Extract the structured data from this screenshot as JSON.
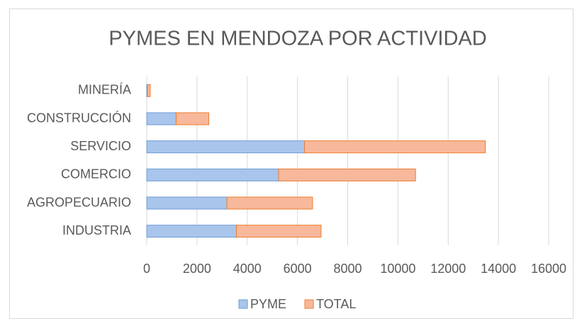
{
  "chart_data": {
    "type": "bar",
    "orientation": "horizontal",
    "stacked": true,
    "title": "PYMES EN MENDOZA POR ACTIVIDAD",
    "categories": [
      "INDUSTRIA",
      "AGROPECUARIO",
      "COMERCIO",
      "SERVICIO",
      "CONSTRUCCIÓN",
      "MINERÍA"
    ],
    "series": [
      {
        "name": "PYME",
        "color": "#a9c5ec",
        "edge": "#6d9bd4",
        "values": [
          3570,
          3190,
          5250,
          6280,
          1170,
          30
        ]
      },
      {
        "name": "TOTAL",
        "color": "#f7b89b",
        "edge": "#ed7d31",
        "values": [
          3370,
          3410,
          5450,
          7200,
          1300,
          110
        ]
      }
    ],
    "xlim": [
      0,
      16000
    ],
    "xticks": [
      0,
      2000,
      4000,
      6000,
      8000,
      10000,
      12000,
      14000,
      16000
    ],
    "grid": true,
    "legend": "bottom"
  }
}
